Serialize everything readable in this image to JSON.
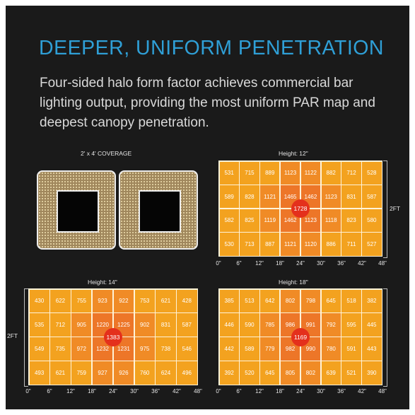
{
  "headline": "DEEPER, UNIFORM PENETRATION",
  "description": "Four-sided halo form factor achieves commercial bar lighting output, providing the most uniform PAR map and deepest canopy penetration.",
  "coverage_label": "2' x 4' COVERAGE",
  "x_ticks": [
    "0\"",
    "6\"",
    "12\"",
    "18\"",
    "24\"",
    "30\"",
    "36\"",
    "42\"",
    "48\""
  ],
  "side_label": "2FT",
  "colors": {
    "accent": "#2f9fd6",
    "outer": "#f3a21f",
    "mid": "#f08b26",
    "inner": "#ed7628",
    "peak": "#e4301c"
  },
  "maps": {
    "h12": {
      "label": "Height: 12\"",
      "rows": [
        [
          "531",
          "715",
          "889",
          "1123",
          "1122",
          "882",
          "712",
          "528"
        ],
        [
          "589",
          "828",
          "1121",
          "1465",
          "1462",
          "1123",
          "831",
          "587"
        ],
        [
          "582",
          "825",
          "1119",
          "1462",
          "1123",
          "1118",
          "823",
          "580"
        ],
        [
          "530",
          "713",
          "887",
          "1121",
          "1120",
          "886",
          "711",
          "527"
        ]
      ],
      "peak": "1728"
    },
    "h14": {
      "label": "Height: 14\"",
      "rows": [
        [
          "430",
          "622",
          "755",
          "923",
          "922",
          "753",
          "621",
          "428"
        ],
        [
          "535",
          "712",
          "905",
          "1220",
          "1225",
          "902",
          "831",
          "587"
        ],
        [
          "549",
          "735",
          "972",
          "1232",
          "1231",
          "975",
          "738",
          "546"
        ],
        [
          "493",
          "621",
          "759",
          "927",
          "926",
          "760",
          "624",
          "496"
        ]
      ],
      "peak": "1383"
    },
    "h18": {
      "label": "Height: 18\"",
      "rows": [
        [
          "385",
          "513",
          "642",
          "802",
          "798",
          "645",
          "518",
          "382"
        ],
        [
          "446",
          "590",
          "785",
          "986",
          "991",
          "792",
          "595",
          "445"
        ],
        [
          "442",
          "589",
          "779",
          "982",
          "990",
          "780",
          "591",
          "443"
        ],
        [
          "392",
          "520",
          "645",
          "805",
          "802",
          "639",
          "521",
          "390"
        ]
      ],
      "peak": "1169"
    }
  }
}
